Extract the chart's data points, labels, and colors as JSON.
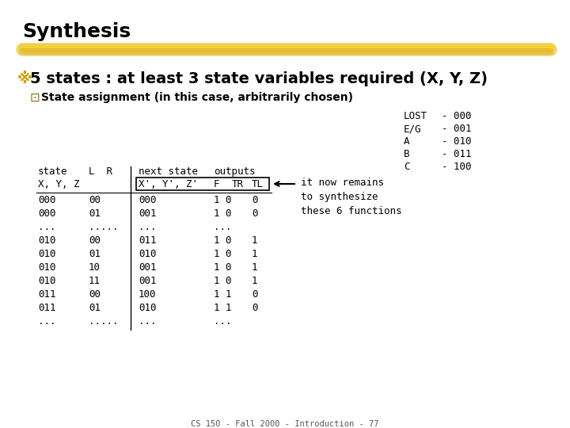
{
  "title": "Synthesis",
  "bullet1": "5 states : at least 3 state variables required (X, Y, Z)",
  "bullet2": "State assignment (in this case, arbitrarily chosen)",
  "state_assignment": [
    [
      "LOST",
      "- 000"
    ],
    [
      "E/G",
      "- 001"
    ],
    [
      "A",
      "- 010"
    ],
    [
      "B",
      "- 011"
    ],
    [
      "C",
      "- 100"
    ]
  ],
  "annotation_text": "it now remains\nto synthesize\nthese 6 functions",
  "footer": "CS 150 - Fall 2000 - Introduction - 77",
  "bg_color": "#ffffff",
  "rows": [
    [
      "000",
      "00",
      "000",
      "1 0",
      "0"
    ],
    [
      "000",
      "01",
      "001",
      "1 0",
      "0"
    ],
    [
      "...",
      ".....",
      "...",
      "...",
      ""
    ],
    [
      "010",
      "00",
      "011",
      "1 0",
      "1"
    ],
    [
      "010",
      "01",
      "010",
      "1 0",
      "1"
    ],
    [
      "010",
      "10",
      "001",
      "1 0",
      "1"
    ],
    [
      "010",
      "11",
      "001",
      "1 0",
      "1"
    ],
    [
      "011",
      "00",
      "100",
      "1 1",
      "0"
    ],
    [
      "011",
      "01",
      "010",
      "1 1",
      "0"
    ],
    [
      "...",
      ".....",
      "...",
      "...",
      ""
    ]
  ]
}
